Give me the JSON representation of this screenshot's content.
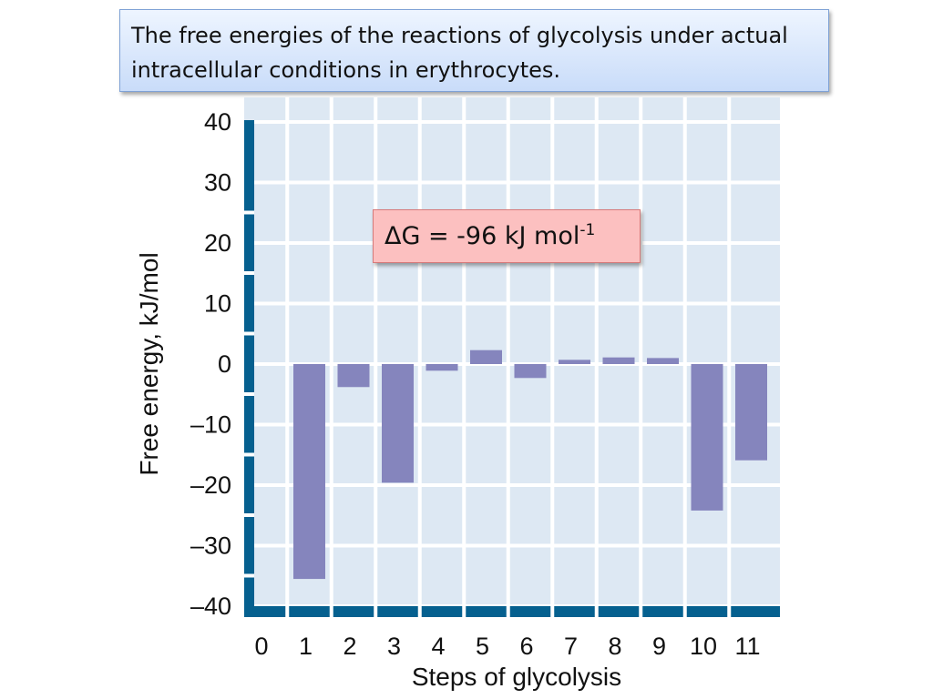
{
  "title": "The free energies of the reactions of glycolysis under actual intracellular conditions in erythrocytes.",
  "annotation": {
    "text": "ΔG = -96 kJ mol",
    "superscript": "-1"
  },
  "chart_data": {
    "type": "bar",
    "x_ticks": [
      "0",
      "1",
      "2",
      "3",
      "4",
      "5",
      "6",
      "7",
      "8",
      "9",
      "10",
      "11"
    ],
    "categories": [
      "1",
      "2",
      "3",
      "4",
      "5",
      "6",
      "7",
      "8",
      "9",
      "10",
      "11"
    ],
    "values": [
      -35.5,
      -3.8,
      -19.6,
      -1.1,
      2.3,
      -2.3,
      0.7,
      1.1,
      1.0,
      -24.2,
      -15.9
    ],
    "xlabel": "Steps of glycolysis",
    "ylabel": "Free energy, kJ/mol",
    "ylim": [
      -40,
      40
    ],
    "y_ticks": [
      "40",
      "30",
      "20",
      "10",
      "0",
      "–10",
      "–20",
      "–30",
      "–40"
    ],
    "grid": true,
    "colors": {
      "bar": "#8585bd",
      "plot_bg": "#dde8f3",
      "grid": "#ffffff",
      "axis": "#05608f"
    }
  }
}
